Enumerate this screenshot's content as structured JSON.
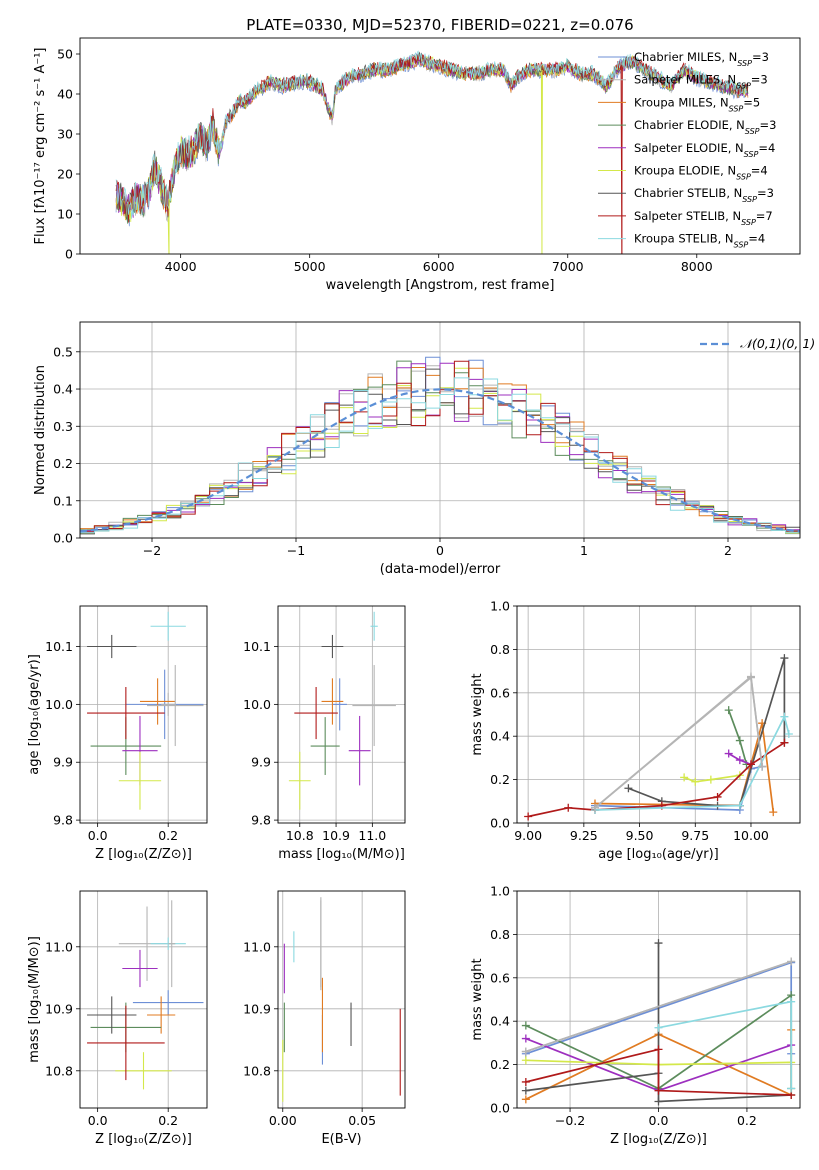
{
  "figure_title": "PLATE=0330, MJD=52370, FIBERID=0221, z=0.076",
  "series": [
    {
      "name": "Chabrier MILES",
      "nssp": "3",
      "color": "#6d8fd6"
    },
    {
      "name": "Salpeter MILES",
      "nssp": "3",
      "color": "#b5b5b5"
    },
    {
      "name": "Kroupa MILES",
      "nssp": "5",
      "color": "#e07b22"
    },
    {
      "name": "Chabrier ELODIE",
      "nssp": "3",
      "color": "#5c8c5c"
    },
    {
      "name": "Salpeter ELODIE",
      "nssp": "4",
      "color": "#9d2fbf"
    },
    {
      "name": "Kroupa ELODIE",
      "nssp": "4",
      "color": "#d4e84a"
    },
    {
      "name": "Chabrier STELIB",
      "nssp": "3",
      "color": "#555555"
    },
    {
      "name": "Salpeter STELIB",
      "nssp": "7",
      "color": "#b01a1a"
    },
    {
      "name": "Kroupa STELIB",
      "nssp": "4",
      "color": "#8bd9e0"
    }
  ],
  "chart_data": [
    {
      "id": "spectrum",
      "type": "line",
      "title": "PLATE=0330, MJD=52370, FIBERID=0221, z=0.076",
      "xlabel": "wavelength [Angstrom, rest frame]",
      "ylabel": "Flux [fλ10⁻¹⁷ erg cm⁻² s⁻¹ A⁻¹]",
      "xlim": [
        3220,
        8800
      ],
      "ylim": [
        0,
        54
      ],
      "xticks": [
        4000,
        5000,
        6000,
        7000,
        8000
      ],
      "yticks": [
        0,
        10,
        20,
        30,
        40,
        50
      ],
      "grid": false,
      "legend": "upper right",
      "x": [
        3500,
        3550,
        3600,
        3650,
        3700,
        3750,
        3800,
        3850,
        3900,
        3950,
        4000,
        4050,
        4100,
        4150,
        4200,
        4250,
        4300,
        4350,
        4400,
        4450,
        4500,
        4600,
        4700,
        4800,
        4900,
        5000,
        5100,
        5150,
        5175,
        5200,
        5300,
        5400,
        5500,
        5600,
        5700,
        5800,
        5850,
        5900,
        6000,
        6100,
        6200,
        6300,
        6400,
        6500,
        6563,
        6600,
        6700,
        6800,
        6900,
        7000,
        7100,
        7200,
        7300,
        7400,
        7500,
        7600,
        7700,
        7800,
        7900,
        8000,
        8100,
        8200,
        8300,
        8400
      ],
      "y": [
        15,
        13,
        11,
        14,
        13,
        15,
        22,
        17,
        12,
        21,
        26,
        25,
        26,
        30,
        27,
        32,
        25,
        33,
        35,
        38,
        38,
        41,
        43,
        42,
        43,
        43,
        41,
        36,
        34,
        41,
        44,
        45,
        46,
        46,
        47,
        48,
        49,
        48,
        47,
        46,
        45,
        45,
        46,
        46,
        42,
        44,
        46,
        46,
        46,
        47,
        45,
        45,
        42,
        47,
        48,
        46,
        44,
        42,
        46,
        44,
        43,
        42,
        41,
        41
      ],
      "dropouts": [
        {
          "series": "Kroupa ELODIE",
          "x": 6800
        },
        {
          "series": "Salpeter STELIB",
          "x": 7420
        },
        {
          "series": "Kroupa ELODIE",
          "x": 3910
        }
      ]
    },
    {
      "id": "residuals",
      "type": "step",
      "xlabel": "(data-model)/error",
      "ylabel": "Normed distribution",
      "xlim": [
        -2.5,
        2.5
      ],
      "ylim": [
        0,
        0.58
      ],
      "xticks": [
        -2,
        -1,
        0,
        1,
        2
      ],
      "yticks": [
        0.0,
        0.1,
        0.2,
        0.3,
        0.4,
        0.5
      ],
      "grid": true,
      "legend": "upper right",
      "reference": {
        "name": "𝒩(0,1)",
        "mu": 0,
        "sigma": 1
      },
      "bin_width": 0.1,
      "bins_from": -2.5,
      "bin_count": 50
    },
    {
      "id": "age_vs_Z",
      "type": "errorbar",
      "xlabel": "Z [log₁₀(Z/Z⊙)]",
      "ylabel": "age  [log₁₀(age/yr)]",
      "xlim": [
        -0.05,
        0.31
      ],
      "ylim": [
        9.795,
        10.17
      ],
      "xticks": [
        0.0,
        0.2
      ],
      "yticks": [
        9.8,
        9.9,
        10.0,
        10.1
      ],
      "grid": true,
      "points": [
        {
          "series": "Chabrier MILES",
          "x": 0.19,
          "y": 10.0,
          "xerr": 0.11,
          "yerr": 0.06
        },
        {
          "series": "Salpeter MILES",
          "x": 0.2,
          "y": 10.0,
          "xerr": 0.02,
          "yerr": 0.02
        },
        {
          "series": "Kroupa MILES",
          "x": 0.17,
          "y": 10.005,
          "xerr": 0.05,
          "yerr": 0.04
        },
        {
          "series": "Chabrier ELODIE",
          "x": 0.08,
          "y": 9.928,
          "xerr": 0.1,
          "yerr": 0.05
        },
        {
          "series": "Salpeter ELODIE",
          "x": 0.12,
          "y": 9.92,
          "xerr": 0.05,
          "yerr": 0.06
        },
        {
          "series": "Kroupa ELODIE",
          "x": 0.12,
          "y": 9.868,
          "xerr": 0.06,
          "yerr": 0.05
        },
        {
          "series": "Chabrier STELIB",
          "x": 0.04,
          "y": 10.1,
          "xerr": 0.07,
          "yerr": 0.02
        },
        {
          "series": "Salpeter STELIB",
          "x": 0.08,
          "y": 9.985,
          "xerr": 0.11,
          "yerr": 0.045
        },
        {
          "series": "Kroupa STELIB",
          "x": 0.2,
          "y": 10.135,
          "xerr": 0.05,
          "yerr": 0.025
        },
        {
          "series": "Salpeter MILES",
          "x": 0.22,
          "y": 9.998,
          "xerr": 0.08,
          "yerr": 0.07
        }
      ]
    },
    {
      "id": "age_vs_mass",
      "type": "errorbar",
      "xlabel": "mass [log₁₀(M/M⊙)]",
      "ylabel": "",
      "xlim": [
        10.74,
        11.09
      ],
      "ylim": [
        9.795,
        10.17
      ],
      "xticks": [
        10.8,
        10.9,
        11.0
      ],
      "yticks": [
        9.8,
        9.9,
        10.0,
        10.1
      ],
      "grid": true,
      "points": [
        {
          "series": "Chabrier MILES",
          "x": 10.91,
          "y": 10.0,
          "xerr": 0.02,
          "yerr": 0.045
        },
        {
          "series": "Salpeter MILES",
          "x": 11.005,
          "y": 9.998,
          "xerr": 0.06,
          "yerr": 0.07
        },
        {
          "series": "Kroupa MILES",
          "x": 10.89,
          "y": 10.005,
          "xerr": 0.03,
          "yerr": 0.04
        },
        {
          "series": "Chabrier ELODIE",
          "x": 10.87,
          "y": 9.928,
          "xerr": 0.04,
          "yerr": 0.05
        },
        {
          "series": "Salpeter ELODIE",
          "x": 10.965,
          "y": 9.92,
          "xerr": 0.03,
          "yerr": 0.06
        },
        {
          "series": "Kroupa ELODIE",
          "x": 10.8,
          "y": 9.868,
          "xerr": 0.03,
          "yerr": 0.05
        },
        {
          "series": "Chabrier STELIB",
          "x": 10.89,
          "y": 10.1,
          "xerr": 0.03,
          "yerr": 0.02
        },
        {
          "series": "Salpeter STELIB",
          "x": 10.845,
          "y": 9.985,
          "xerr": 0.06,
          "yerr": 0.045
        },
        {
          "series": "Kroupa STELIB",
          "x": 11.005,
          "y": 10.135,
          "xerr": 0.01,
          "yerr": 0.025
        }
      ]
    },
    {
      "id": "weight_vs_age",
      "type": "line",
      "xlabel": "age  [log₁₀(age/yr)]",
      "ylabel": "mass weight",
      "xlim": [
        8.95,
        10.22
      ],
      "ylim": [
        0,
        1.0
      ],
      "xticks": [
        9.0,
        9.25,
        9.5,
        9.75,
        10.0
      ],
      "yticks": [
        0.0,
        0.2,
        0.4,
        0.6,
        0.8,
        1.0
      ],
      "grid": true,
      "lines": [
        {
          "series": "Chabrier MILES",
          "points": [
            [
              9.3,
              0.08
            ],
            [
              9.95,
              0.06
            ],
            [
              10.0,
              0.25
            ],
            [
              10.05,
              0.26
            ]
          ]
        },
        {
          "series": "Salpeter MILES",
          "points": [
            [
              9.3,
              0.07
            ],
            [
              10.0,
              0.67
            ],
            [
              10.05,
              0.26
            ]
          ]
        },
        {
          "series": "Kroupa MILES",
          "points": [
            [
              9.3,
              0.09
            ],
            [
              9.95,
              0.08
            ],
            [
              10.05,
              0.46
            ],
            [
              10.1,
              0.05
            ]
          ]
        },
        {
          "series": "Chabrier ELODIE",
          "points": [
            [
              9.9,
              0.52
            ],
            [
              9.95,
              0.38
            ],
            [
              9.98,
              0.27
            ]
          ]
        },
        {
          "series": "Salpeter ELODIE",
          "points": [
            [
              9.9,
              0.32
            ],
            [
              9.95,
              0.29
            ],
            [
              10.0,
              0.27
            ]
          ]
        },
        {
          "series": "Kroupa ELODIE",
          "points": [
            [
              9.7,
              0.21
            ],
            [
              9.75,
              0.19
            ],
            [
              9.82,
              0.2
            ],
            [
              9.95,
              0.22
            ]
          ]
        },
        {
          "series": "Chabrier STELIB",
          "points": [
            [
              9.45,
              0.16
            ],
            [
              9.6,
              0.1
            ],
            [
              9.85,
              0.08
            ],
            [
              9.95,
              0.08
            ],
            [
              10.15,
              0.76
            ],
            [
              10.15,
              0.37
            ]
          ]
        },
        {
          "series": "Salpeter STELIB",
          "points": [
            [
              9.0,
              0.03
            ],
            [
              9.18,
              0.07
            ],
            [
              9.3,
              0.06
            ],
            [
              9.6,
              0.08
            ],
            [
              9.85,
              0.12
            ],
            [
              10.0,
              0.27
            ],
            [
              10.15,
              0.37
            ]
          ]
        },
        {
          "series": "Kroupa STELIB",
          "points": [
            [
              9.3,
              0.06
            ],
            [
              9.95,
              0.08
            ],
            [
              10.15,
              0.49
            ],
            [
              10.17,
              0.41
            ]
          ]
        },
        {
          "series": "Salpeter MILES",
          "points": [
            [
              9.3,
              0.07
            ],
            [
              10.0,
              0.675
            ],
            [
              10.05,
              0.26
            ]
          ]
        }
      ]
    },
    {
      "id": "mass_vs_Z",
      "type": "errorbar",
      "xlabel": "Z [log₁₀(Z/Z⊙)]",
      "ylabel": "mass [log₁₀(M/M⊙)]",
      "xlim": [
        -0.05,
        0.31
      ],
      "ylim": [
        10.74,
        11.09
      ],
      "xticks": [
        0.0,
        0.2
      ],
      "yticks": [
        10.8,
        10.9,
        11.0
      ],
      "grid": true,
      "points": [
        {
          "series": "Chabrier MILES",
          "x": 0.2,
          "y": 10.91,
          "xerr": 0.1,
          "yerr": 0.02
        },
        {
          "series": "Salpeter MILES",
          "x": 0.14,
          "y": 11.005,
          "xerr": 0.08,
          "yerr": 0.06
        },
        {
          "series": "Kroupa MILES",
          "x": 0.18,
          "y": 10.89,
          "xerr": 0.04,
          "yerr": 0.03
        },
        {
          "series": "Chabrier ELODIE",
          "x": 0.08,
          "y": 10.87,
          "xerr": 0.1,
          "yerr": 0.04
        },
        {
          "series": "Salpeter ELODIE",
          "x": 0.12,
          "y": 10.965,
          "xerr": 0.05,
          "yerr": 0.03
        },
        {
          "series": "Kroupa ELODIE",
          "x": 0.13,
          "y": 10.8,
          "xerr": 0.08,
          "yerr": 0.03
        },
        {
          "series": "Chabrier STELIB",
          "x": 0.04,
          "y": 10.89,
          "xerr": 0.07,
          "yerr": 0.03
        },
        {
          "series": "Salpeter STELIB",
          "x": 0.08,
          "y": 10.845,
          "xerr": 0.11,
          "yerr": 0.06
        },
        {
          "series": "Kroupa STELIB",
          "x": 0.2,
          "y": 11.005,
          "xerr": 0.05,
          "yerr": 0.01
        },
        {
          "series": "Salpeter MILES",
          "x": 0.21,
          "y": 11.005,
          "xerr": 0.01,
          "yerr": 0.07
        }
      ]
    },
    {
      "id": "mass_vs_ebv",
      "type": "errorbar",
      "xlabel": "E(B-V)",
      "ylabel": "",
      "xlim": [
        -0.003,
        0.077
      ],
      "ylim": [
        10.74,
        11.09
      ],
      "xticks": [
        0.0,
        0.05
      ],
      "yticks": [
        10.8,
        10.9,
        11.0
      ],
      "grid": true,
      "points": [
        {
          "series": "Chabrier MILES",
          "x": 0.025,
          "y": 10.85,
          "xerr": 0,
          "yerr": 0.04
        },
        {
          "series": "Salpeter MILES",
          "x": 0.024,
          "y": 11.005,
          "xerr": 0,
          "yerr": 0.075
        },
        {
          "series": "Kroupa MILES",
          "x": 0.025,
          "y": 10.89,
          "xerr": 0,
          "yerr": 0.06
        },
        {
          "series": "Chabrier ELODIE",
          "x": 0.001,
          "y": 10.87,
          "xerr": 0,
          "yerr": 0.04
        },
        {
          "series": "Salpeter ELODIE",
          "x": 0.001,
          "y": 10.965,
          "xerr": 0,
          "yerr": 0.04
        },
        {
          "series": "Kroupa ELODIE",
          "x": 0.0,
          "y": 10.8,
          "xerr": 0,
          "yerr": 0.05
        },
        {
          "series": "Chabrier STELIB",
          "x": 0.043,
          "y": 10.875,
          "xerr": 0,
          "yerr": 0.035
        },
        {
          "series": "Salpeter STELIB",
          "x": 0.074,
          "y": 10.83,
          "xerr": 0,
          "yerr": 0.07
        },
        {
          "series": "Kroupa STELIB",
          "x": 0.007,
          "y": 11.0,
          "xerr": 0,
          "yerr": 0.025
        },
        {
          "series": "Salpeter MILES",
          "x": 0.024,
          "y": 11.005,
          "xerr": 0,
          "yerr": 0.07
        }
      ]
    },
    {
      "id": "weight_vs_Z",
      "type": "line",
      "xlabel": "Z [log₁₀(Z/Z⊙)]",
      "ylabel": "mass weight",
      "xlim": [
        -0.32,
        0.32
      ],
      "ylim": [
        0,
        1.0
      ],
      "xticks": [
        -0.2,
        0.0,
        0.2
      ],
      "yticks": [
        0.0,
        0.2,
        0.4,
        0.6,
        0.8,
        1.0
      ],
      "grid": true,
      "lines": [
        {
          "series": "Chabrier MILES",
          "points": [
            [
              -0.3,
              0.25
            ],
            [
              0.3,
              0.67
            ],
            [
              0.3,
              0.25
            ]
          ]
        },
        {
          "series": "Salpeter MILES",
          "points": [
            [
              -0.3,
              0.26
            ],
            [
              0.3,
              0.675
            ]
          ]
        },
        {
          "series": "Kroupa MILES",
          "points": [
            [
              -0.3,
              0.04
            ],
            [
              0.0,
              0.34
            ],
            [
              0.3,
              0.06
            ],
            [
              0.3,
              0.36
            ]
          ]
        },
        {
          "series": "Chabrier ELODIE",
          "points": [
            [
              -0.3,
              0.38
            ],
            [
              0.0,
              0.09
            ],
            [
              0.3,
              0.52
            ],
            [
              0.3,
              0.09
            ]
          ]
        },
        {
          "series": "Salpeter ELODIE",
          "points": [
            [
              -0.3,
              0.32
            ],
            [
              0.0,
              0.08
            ],
            [
              0.3,
              0.29
            ]
          ]
        },
        {
          "series": "Kroupa ELODIE",
          "points": [
            [
              -0.3,
              0.22
            ],
            [
              0.0,
              0.2
            ],
            [
              0.3,
              0.21
            ]
          ]
        },
        {
          "series": "Chabrier STELIB",
          "points": [
            [
              -0.3,
              0.08
            ],
            [
              0.0,
              0.16
            ],
            [
              0.0,
              0.76
            ],
            [
              0.0,
              0.03
            ],
            [
              0.3,
              0.06
            ]
          ]
        },
        {
          "series": "Salpeter STELIB",
          "points": [
            [
              -0.3,
              0.12
            ],
            [
              0.0,
              0.27
            ],
            [
              0.0,
              0.08
            ],
            [
              0.3,
              0.06
            ]
          ]
        },
        {
          "series": "Kroupa STELIB",
          "points": [
            [
              0.0,
              0.37
            ],
            [
              0.3,
              0.49
            ],
            [
              0.3,
              0.09
            ]
          ]
        },
        {
          "series": "Salpeter MILES",
          "points": [
            [
              -0.3,
              0.26
            ],
            [
              0.3,
              0.675
            ]
          ]
        }
      ]
    }
  ]
}
